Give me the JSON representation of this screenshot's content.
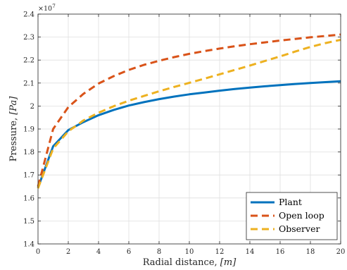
{
  "chart_data": {
    "type": "line",
    "title": "",
    "xlabel_text": "Radial distance, ",
    "xlabel_unit": "[m]",
    "ylabel_text": "Pressure, ",
    "ylabel_unit": "[Pa]",
    "xlim": [
      0,
      20
    ],
    "ylim": [
      14000000,
      24000000
    ],
    "x_ticks": [
      0,
      2,
      4,
      6,
      8,
      10,
      12,
      14,
      16,
      18,
      20
    ],
    "y_ticks": [
      14000000,
      15000000,
      16000000,
      17000000,
      18000000,
      19000000,
      20000000,
      21000000,
      22000000,
      23000000,
      24000000
    ],
    "x_tick_labels": [
      "0",
      "2",
      "4",
      "6",
      "8",
      "10",
      "12",
      "14",
      "16",
      "18",
      "20"
    ],
    "y_tick_labels": [
      "1.4",
      "1.5",
      "1.6",
      "1.7",
      "1.8",
      "1.9",
      "2",
      "2.1",
      "2.2",
      "2.3",
      "2.4"
    ],
    "y_exponent_base": "×10",
    "y_exponent_power": "7",
    "grid": true,
    "legend_position": "bottom-right",
    "series": [
      {
        "name": "Plant",
        "color": "#0072bd",
        "dash": "solid",
        "x": [
          0,
          1,
          2,
          3,
          4,
          5,
          6,
          7,
          8,
          9,
          10,
          11,
          12,
          13,
          14,
          15,
          16,
          17,
          18,
          19,
          20
        ],
        "y": [
          16450000,
          18250000,
          18950000,
          19300000,
          19600000,
          19830000,
          20020000,
          20170000,
          20300000,
          20410000,
          20510000,
          20590000,
          20670000,
          20740000,
          20800000,
          20860000,
          20910000,
          20960000,
          21000000,
          21040000,
          21080000
        ]
      },
      {
        "name": "Open loop",
        "color": "#d95319",
        "dash": "dashed",
        "x": [
          0,
          1,
          2,
          3,
          4,
          5,
          6,
          7,
          8,
          9,
          10,
          11,
          12,
          13,
          14,
          15,
          16,
          17,
          18,
          19,
          20
        ],
        "y": [
          16500000,
          19000000,
          19950000,
          20530000,
          20980000,
          21300000,
          21570000,
          21790000,
          21970000,
          22130000,
          22270000,
          22390000,
          22500000,
          22600000,
          22690000,
          22770000,
          22850000,
          22920000,
          22990000,
          23050000,
          23110000
        ]
      },
      {
        "name": "Observer",
        "color": "#edb120",
        "dash": "dashed",
        "x": [
          0,
          1,
          2,
          3,
          4,
          5,
          6,
          7,
          8,
          9,
          10,
          11,
          12,
          13,
          14,
          15,
          16,
          17,
          18,
          19,
          20
        ],
        "y": [
          16420000,
          18150000,
          18900000,
          19370000,
          19710000,
          19990000,
          20230000,
          20440000,
          20640000,
          20830000,
          21010000,
          21190000,
          21380000,
          21570000,
          21760000,
          21960000,
          22160000,
          22370000,
          22570000,
          22740000,
          22880000
        ]
      }
    ]
  }
}
